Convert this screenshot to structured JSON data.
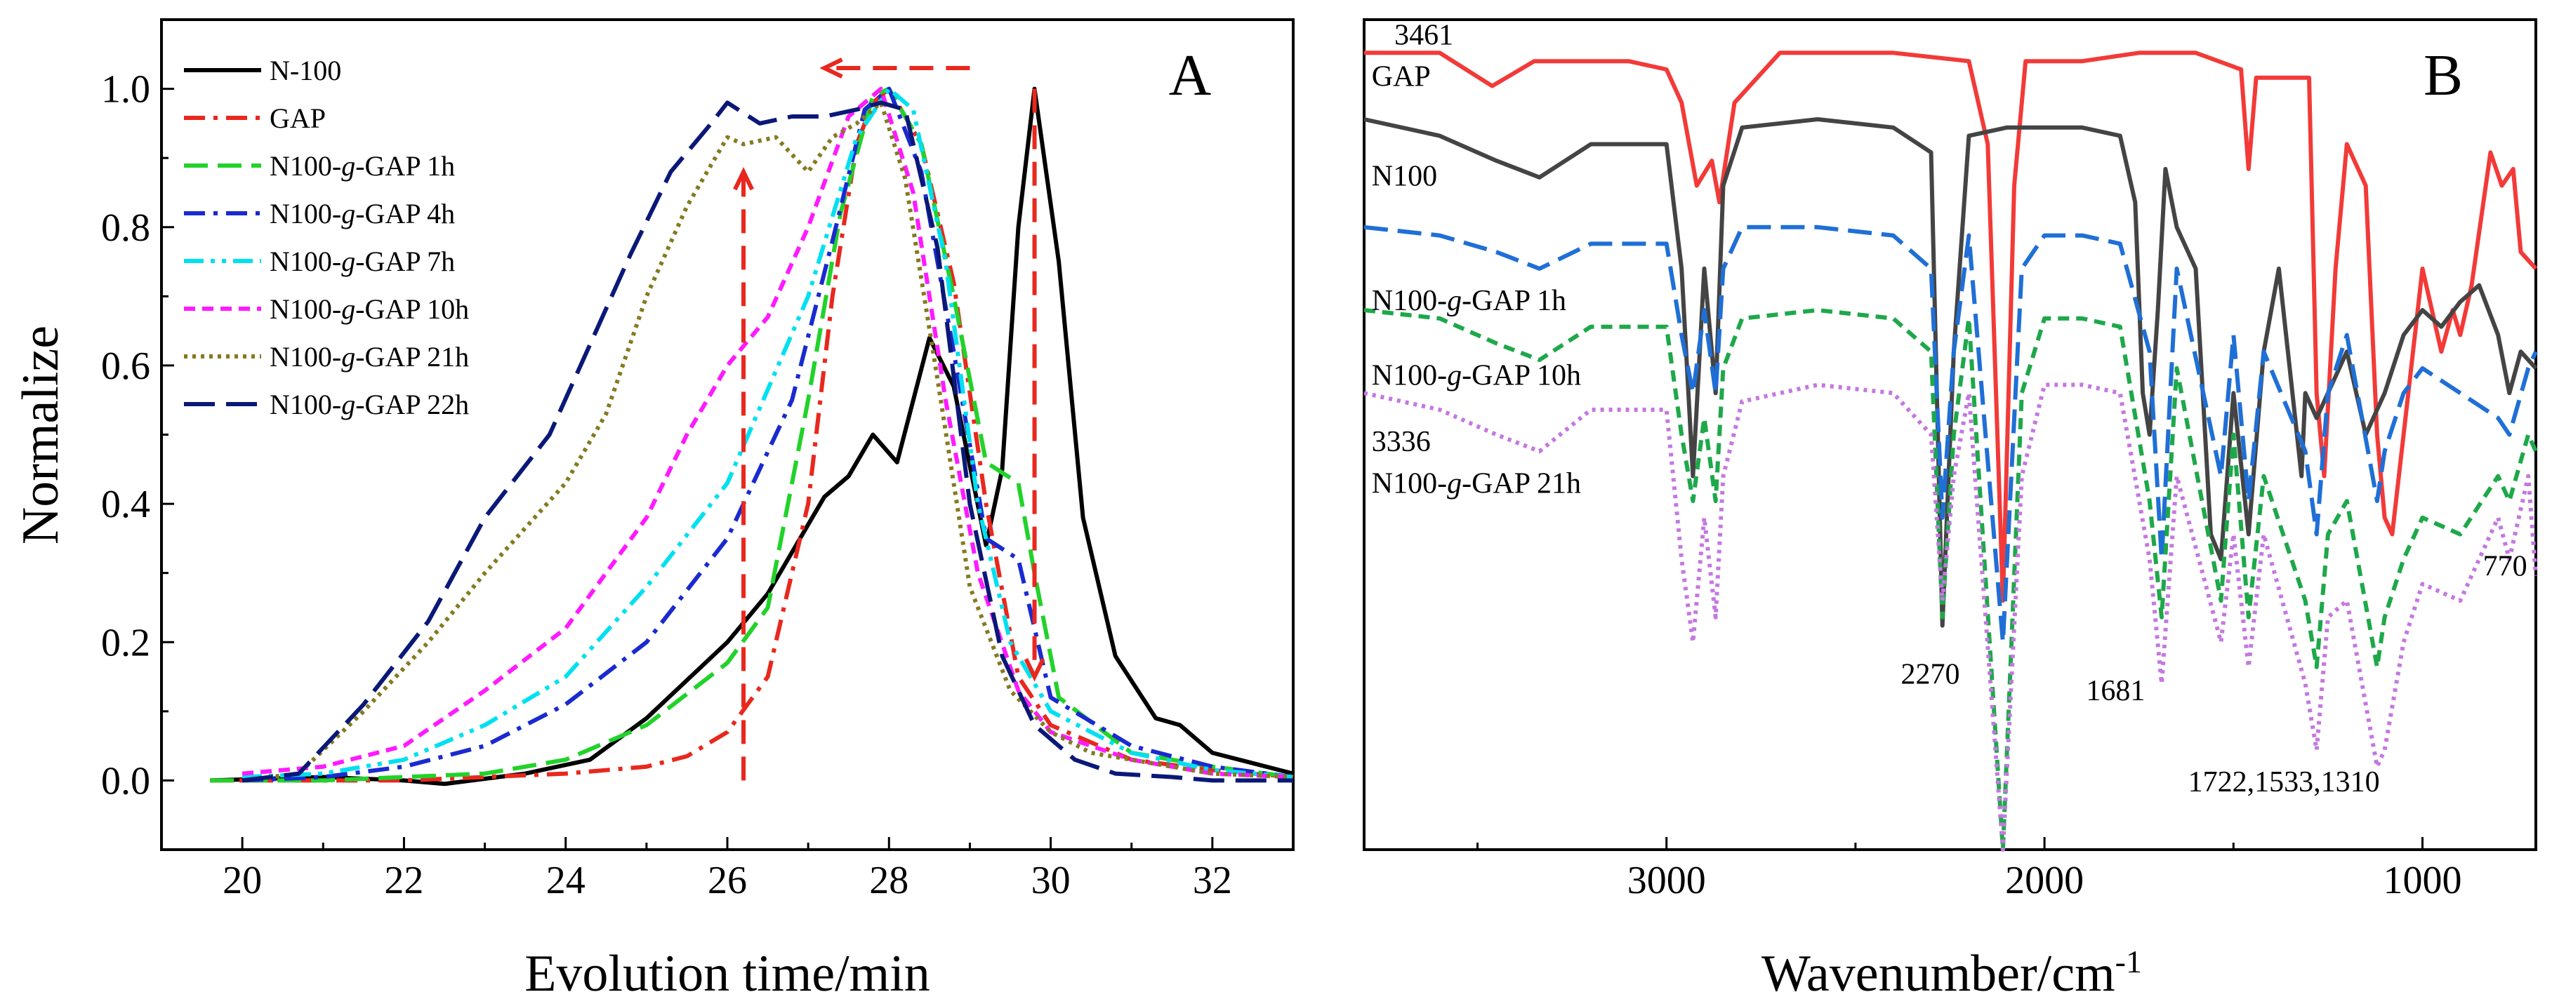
{
  "chart_data": [
    {
      "panel": "A",
      "type": "line",
      "panel_label": "A",
      "title": "",
      "xlabel": "Evolution time/min",
      "ylabel": "Normalize",
      "xlim": [
        19,
        33
      ],
      "ylim": [
        -0.1,
        1.1
      ],
      "xticks": [
        20,
        22,
        24,
        26,
        28,
        30,
        32
      ],
      "xtick_labels": [
        "20",
        "22",
        "24",
        "26",
        "28",
        "30",
        "32"
      ],
      "yticks": [
        0.0,
        0.2,
        0.4,
        0.6,
        0.8,
        1.0
      ],
      "ytick_labels": [
        "0.0",
        "0.2",
        "0.4",
        "0.6",
        "0.8",
        "1.0"
      ],
      "legend_position": "top-left",
      "series": [
        {
          "name": "N-100",
          "color": "#000000",
          "dash": "solid",
          "x": [
            19.6,
            21,
            22,
            22.5,
            23.5,
            24.3,
            25,
            26,
            26.5,
            27.2,
            27.5,
            27.8,
            28.1,
            28.5,
            28.8,
            29.2,
            29.4,
            29.6,
            29.8,
            30.1,
            30.4,
            30.8,
            31.3,
            31.6,
            32,
            33
          ],
          "y": [
            0.0,
            0.005,
            0.0,
            -0.005,
            0.01,
            0.03,
            0.09,
            0.2,
            0.27,
            0.41,
            0.44,
            0.5,
            0.46,
            0.64,
            0.57,
            0.34,
            0.45,
            0.8,
            1.0,
            0.75,
            0.38,
            0.18,
            0.09,
            0.08,
            0.04,
            0.01
          ]
        },
        {
          "name": "GAP",
          "color": "#e8281e",
          "dash": "dashdot",
          "x": [
            19.6,
            21,
            22,
            23,
            24,
            25,
            25.5,
            26,
            26.5,
            27,
            27.3,
            27.6,
            27.8,
            28,
            28.4,
            28.8,
            29.2,
            29.6,
            30,
            31,
            32,
            33
          ],
          "y": [
            0.0,
            0.0,
            0.0,
            0.005,
            0.01,
            0.02,
            0.035,
            0.07,
            0.15,
            0.4,
            0.7,
            0.92,
            0.98,
            1.0,
            0.92,
            0.72,
            0.4,
            0.15,
            0.08,
            0.03,
            0.015,
            0.005
          ]
        },
        {
          "name": "N100-g-GAP 1h",
          "color": "#22d22a",
          "dash": "dash",
          "x": [
            19.6,
            21,
            22,
            23,
            24,
            25,
            26,
            26.5,
            27,
            27.4,
            27.8,
            28,
            28.4,
            28.8,
            29.2,
            29.6,
            29.8,
            30.1,
            31,
            32,
            33
          ],
          "y": [
            0.0,
            0.0,
            0.005,
            0.01,
            0.03,
            0.08,
            0.17,
            0.25,
            0.55,
            0.82,
            0.99,
            1.0,
            0.92,
            0.7,
            0.46,
            0.43,
            0.3,
            0.12,
            0.04,
            0.02,
            0.005
          ]
        },
        {
          "name": "N100-g-GAP 4h",
          "color": "#1a2ad0",
          "dash": "dashdot",
          "x": [
            20,
            21,
            22,
            23,
            24,
            25,
            26,
            26.8,
            27.3,
            27.7,
            28,
            28.4,
            28.8,
            29.2,
            29.6,
            30,
            31,
            32,
            33
          ],
          "y": [
            0.0,
            0.005,
            0.02,
            0.05,
            0.11,
            0.2,
            0.35,
            0.55,
            0.78,
            0.97,
            1.0,
            0.88,
            0.62,
            0.35,
            0.32,
            0.12,
            0.05,
            0.02,
            0.005
          ]
        },
        {
          "name": "N100-g-GAP 7h",
          "color": "#00e0f0",
          "dash": "dashdotdot",
          "x": [
            20,
            21,
            22,
            23,
            24,
            25,
            26,
            27,
            27.6,
            28,
            28.3,
            28.7,
            29.1,
            29.5,
            30,
            31,
            32,
            33
          ],
          "y": [
            0.005,
            0.01,
            0.03,
            0.08,
            0.15,
            0.28,
            0.43,
            0.7,
            0.93,
            1.0,
            0.97,
            0.75,
            0.4,
            0.2,
            0.1,
            0.04,
            0.015,
            0.005
          ]
        },
        {
          "name": "N100-g-GAP 10h",
          "color": "#ff1aff",
          "dash": "shortdash",
          "x": [
            20,
            21,
            22,
            23,
            24,
            25,
            25.5,
            26,
            26.5,
            27,
            27.5,
            27.9,
            28.3,
            28.7,
            29.1,
            29.6,
            30,
            31,
            32,
            33
          ],
          "y": [
            0.01,
            0.02,
            0.05,
            0.13,
            0.22,
            0.38,
            0.5,
            0.6,
            0.67,
            0.8,
            0.96,
            1.0,
            0.85,
            0.55,
            0.3,
            0.13,
            0.07,
            0.03,
            0.01,
            0.005
          ]
        },
        {
          "name": "N100-g-GAP 21h",
          "color": "#857a1e",
          "dash": "dot",
          "x": [
            20,
            20.7,
            21.5,
            22.3,
            23,
            24,
            24.5,
            25,
            25.5,
            26,
            26.2,
            26.6,
            27,
            27.3,
            27.6,
            27.9,
            28.2,
            28.6,
            29,
            29.5,
            30,
            30.5,
            31,
            32,
            33
          ],
          "y": [
            0.0,
            0.01,
            0.1,
            0.2,
            0.3,
            0.43,
            0.53,
            0.7,
            0.83,
            0.93,
            0.92,
            0.93,
            0.88,
            0.93,
            0.95,
            0.98,
            0.87,
            0.58,
            0.28,
            0.13,
            0.07,
            0.04,
            0.03,
            0.01,
            0.005
          ]
        },
        {
          "name": "N100-g-GAP 22h",
          "color": "#0a1878",
          "dash": "longdash",
          "x": [
            20,
            20.7,
            21.5,
            22.3,
            23,
            23.8,
            24.3,
            24.8,
            25.3,
            25.8,
            26,
            26.4,
            26.8,
            27.2,
            27.6,
            27.9,
            28.2,
            28.6,
            29,
            29.4,
            29.8,
            30.3,
            30.8,
            31.5,
            32,
            33
          ],
          "y": [
            0.0,
            0.01,
            0.11,
            0.23,
            0.38,
            0.5,
            0.63,
            0.76,
            0.88,
            0.95,
            0.98,
            0.95,
            0.96,
            0.96,
            0.97,
            0.98,
            0.97,
            0.77,
            0.4,
            0.18,
            0.08,
            0.03,
            0.01,
            0.005,
            0.0,
            0.0
          ]
        }
      ],
      "arrows": [
        {
          "from": [
            29.0,
            1.03
          ],
          "to": [
            27.2,
            1.03
          ],
          "color": "#e8281e"
        },
        {
          "from": [
            26.2,
            0.0
          ],
          "to": [
            26.2,
            0.88
          ],
          "color": "#e8281e"
        },
        {
          "from": [
            29.8,
            1.0
          ],
          "to": [
            29.8,
            0.15
          ],
          "color": "#e8281e"
        }
      ]
    },
    {
      "panel": "B",
      "type": "line",
      "panel_label": "B",
      "title": "",
      "xlabel": "Wavenumber/cm",
      "xlabel_superscript": "-1",
      "ylabel": "",
      "x_reversed": true,
      "xlim": [
        3800,
        700
      ],
      "ylim": [
        0,
        1
      ],
      "xticks": [
        3000,
        2000,
        1000
      ],
      "xtick_labels": [
        "3000",
        "2000",
        "1000"
      ],
      "minor_xticks": [
        3500,
        2500,
        1500
      ],
      "series": [
        {
          "name": "GAP",
          "color": "#f23a38",
          "dash": "solid",
          "label": "GAP",
          "x": [
            3800,
            3600,
            3461,
            3350,
            3100,
            3000,
            2960,
            2920,
            2880,
            2860,
            2820,
            2700,
            2400,
            2200,
            2150,
            2110,
            2080,
            2050,
            1900,
            1750,
            1700,
            1600,
            1480,
            1460,
            1440,
            1300,
            1280,
            1260,
            1230,
            1200,
            1150,
            1120,
            1100,
            1080,
            1050,
            1000,
            950,
            920,
            900,
            870,
            820,
            790,
            760,
            740,
            700
          ],
          "y": [
            0.96,
            0.96,
            0.92,
            0.95,
            0.95,
            0.94,
            0.9,
            0.8,
            0.83,
            0.78,
            0.9,
            0.96,
            0.96,
            0.95,
            0.85,
            0.3,
            0.8,
            0.95,
            0.95,
            0.96,
            0.96,
            0.96,
            0.94,
            0.82,
            0.93,
            0.93,
            0.55,
            0.45,
            0.7,
            0.85,
            0.8,
            0.5,
            0.4,
            0.38,
            0.5,
            0.7,
            0.6,
            0.65,
            0.62,
            0.68,
            0.84,
            0.8,
            0.82,
            0.72,
            0.7
          ]
        },
        {
          "name": "N100",
          "color": "#444444",
          "dash": "solid",
          "label": "N100",
          "x": [
            3800,
            3600,
            3450,
            3336,
            3200,
            3000,
            2960,
            2930,
            2900,
            2870,
            2850,
            2800,
            2600,
            2400,
            2300,
            2270,
            2240,
            2200,
            2100,
            2000,
            1900,
            1800,
            1760,
            1740,
            1722,
            1700,
            1680,
            1650,
            1600,
            1560,
            1533,
            1500,
            1460,
            1420,
            1380,
            1320,
            1310,
            1280,
            1200,
            1150,
            1100,
            1050,
            1000,
            950,
            900,
            850,
            800,
            770,
            740,
            700
          ],
          "y": [
            0.88,
            0.86,
            0.83,
            0.81,
            0.85,
            0.85,
            0.7,
            0.45,
            0.7,
            0.55,
            0.8,
            0.87,
            0.88,
            0.87,
            0.84,
            0.27,
            0.6,
            0.86,
            0.87,
            0.87,
            0.87,
            0.86,
            0.78,
            0.55,
            0.5,
            0.65,
            0.82,
            0.75,
            0.7,
            0.38,
            0.35,
            0.55,
            0.38,
            0.6,
            0.7,
            0.45,
            0.55,
            0.52,
            0.6,
            0.5,
            0.55,
            0.62,
            0.65,
            0.63,
            0.66,
            0.68,
            0.62,
            0.55,
            0.6,
            0.58
          ]
        },
        {
          "name": "N100-g-GAP 1h",
          "color": "#1f6fd6",
          "dash": "dash",
          "label": "N100-g-GAP 1h",
          "x": [
            3800,
            3600,
            3450,
            3336,
            3200,
            3000,
            2960,
            2930,
            2900,
            2870,
            2850,
            2800,
            2600,
            2400,
            2300,
            2270,
            2240,
            2200,
            2110,
            2060,
            2000,
            1900,
            1800,
            1722,
            1690,
            1650,
            1533,
            1500,
            1460,
            1420,
            1310,
            1280,
            1250,
            1200,
            1120,
            1100,
            1050,
            1000,
            900,
            800,
            770,
            720,
            700
          ],
          "y": [
            0.75,
            0.74,
            0.72,
            0.7,
            0.73,
            0.73,
            0.62,
            0.55,
            0.65,
            0.55,
            0.7,
            0.75,
            0.75,
            0.74,
            0.7,
            0.4,
            0.6,
            0.74,
            0.25,
            0.7,
            0.74,
            0.74,
            0.73,
            0.6,
            0.35,
            0.7,
            0.45,
            0.62,
            0.42,
            0.6,
            0.48,
            0.38,
            0.55,
            0.62,
            0.42,
            0.48,
            0.55,
            0.58,
            0.55,
            0.52,
            0.5,
            0.58,
            0.6
          ]
        },
        {
          "name": "N100-g-GAP 10h",
          "color": "#1ea84a",
          "dash": "shortdash",
          "label": "N100-g-GAP 10h",
          "x": [
            3800,
            3600,
            3450,
            3336,
            3200,
            3000,
            2960,
            2930,
            2900,
            2870,
            2850,
            2800,
            2600,
            2400,
            2300,
            2270,
            2240,
            2200,
            2110,
            2060,
            2000,
            1900,
            1800,
            1722,
            1690,
            1650,
            1533,
            1500,
            1460,
            1420,
            1310,
            1280,
            1250,
            1200,
            1120,
            1100,
            1050,
            1000,
            900,
            800,
            770,
            720,
            700
          ],
          "y": [
            0.65,
            0.64,
            0.61,
            0.59,
            0.63,
            0.63,
            0.5,
            0.42,
            0.52,
            0.42,
            0.58,
            0.64,
            0.65,
            0.64,
            0.6,
            0.28,
            0.5,
            0.64,
            0.0,
            0.55,
            0.64,
            0.64,
            0.63,
            0.42,
            0.28,
            0.58,
            0.3,
            0.5,
            0.28,
            0.45,
            0.3,
            0.22,
            0.38,
            0.42,
            0.22,
            0.28,
            0.35,
            0.4,
            0.38,
            0.45,
            0.42,
            0.5,
            0.48
          ]
        },
        {
          "name": "N100-g-GAP 21h",
          "color": "#c478e0",
          "dash": "dot",
          "label": "N100-g-GAP 21h",
          "x": [
            3800,
            3600,
            3450,
            3336,
            3200,
            3000,
            2960,
            2930,
            2900,
            2870,
            2850,
            2800,
            2600,
            2400,
            2300,
            2270,
            2240,
            2200,
            2110,
            2060,
            2000,
            1900,
            1800,
            1722,
            1690,
            1650,
            1533,
            1500,
            1460,
            1420,
            1310,
            1280,
            1250,
            1200,
            1120,
            1100,
            1050,
            1000,
            900,
            800,
            770,
            720,
            700
          ],
          "y": [
            0.55,
            0.53,
            0.5,
            0.48,
            0.53,
            0.53,
            0.35,
            0.25,
            0.4,
            0.28,
            0.45,
            0.54,
            0.56,
            0.55,
            0.5,
            0.3,
            0.45,
            0.55,
            0.0,
            0.45,
            0.56,
            0.56,
            0.55,
            0.35,
            0.2,
            0.45,
            0.25,
            0.38,
            0.22,
            0.38,
            0.2,
            0.12,
            0.28,
            0.3,
            0.1,
            0.12,
            0.25,
            0.32,
            0.3,
            0.4,
            0.35,
            0.45,
            0.33
          ]
        }
      ],
      "series_labels": [
        {
          "text": "GAP",
          "x": 3780,
          "y": 0.92
        },
        {
          "text": "N100",
          "x": 3780,
          "y": 0.8
        },
        {
          "text": "N100-",
          "italic": "g",
          "rest": "-GAP 1h",
          "x": 3780,
          "y": 0.65
        },
        {
          "text": "N100-",
          "italic": "g",
          "rest": "-GAP 10h",
          "x": 3780,
          "y": 0.56
        },
        {
          "text": "N100-",
          "italic": "g",
          "rest": "-GAP 21h",
          "x": 3780,
          "y": 0.43
        }
      ],
      "annotations": [
        {
          "text": "3461",
          "x": 3720,
          "y": 0.97
        },
        {
          "text": "3336",
          "x": 3780,
          "y": 0.48
        },
        {
          "text": "2270",
          "x": 2380,
          "y": 0.2
        },
        {
          "text": "1681",
          "x": 1890,
          "y": 0.18
        },
        {
          "text": "1722,1533,1310",
          "x": 1620,
          "y": 0.07
        },
        {
          "text": "770",
          "x": 840,
          "y": 0.33
        }
      ]
    }
  ]
}
